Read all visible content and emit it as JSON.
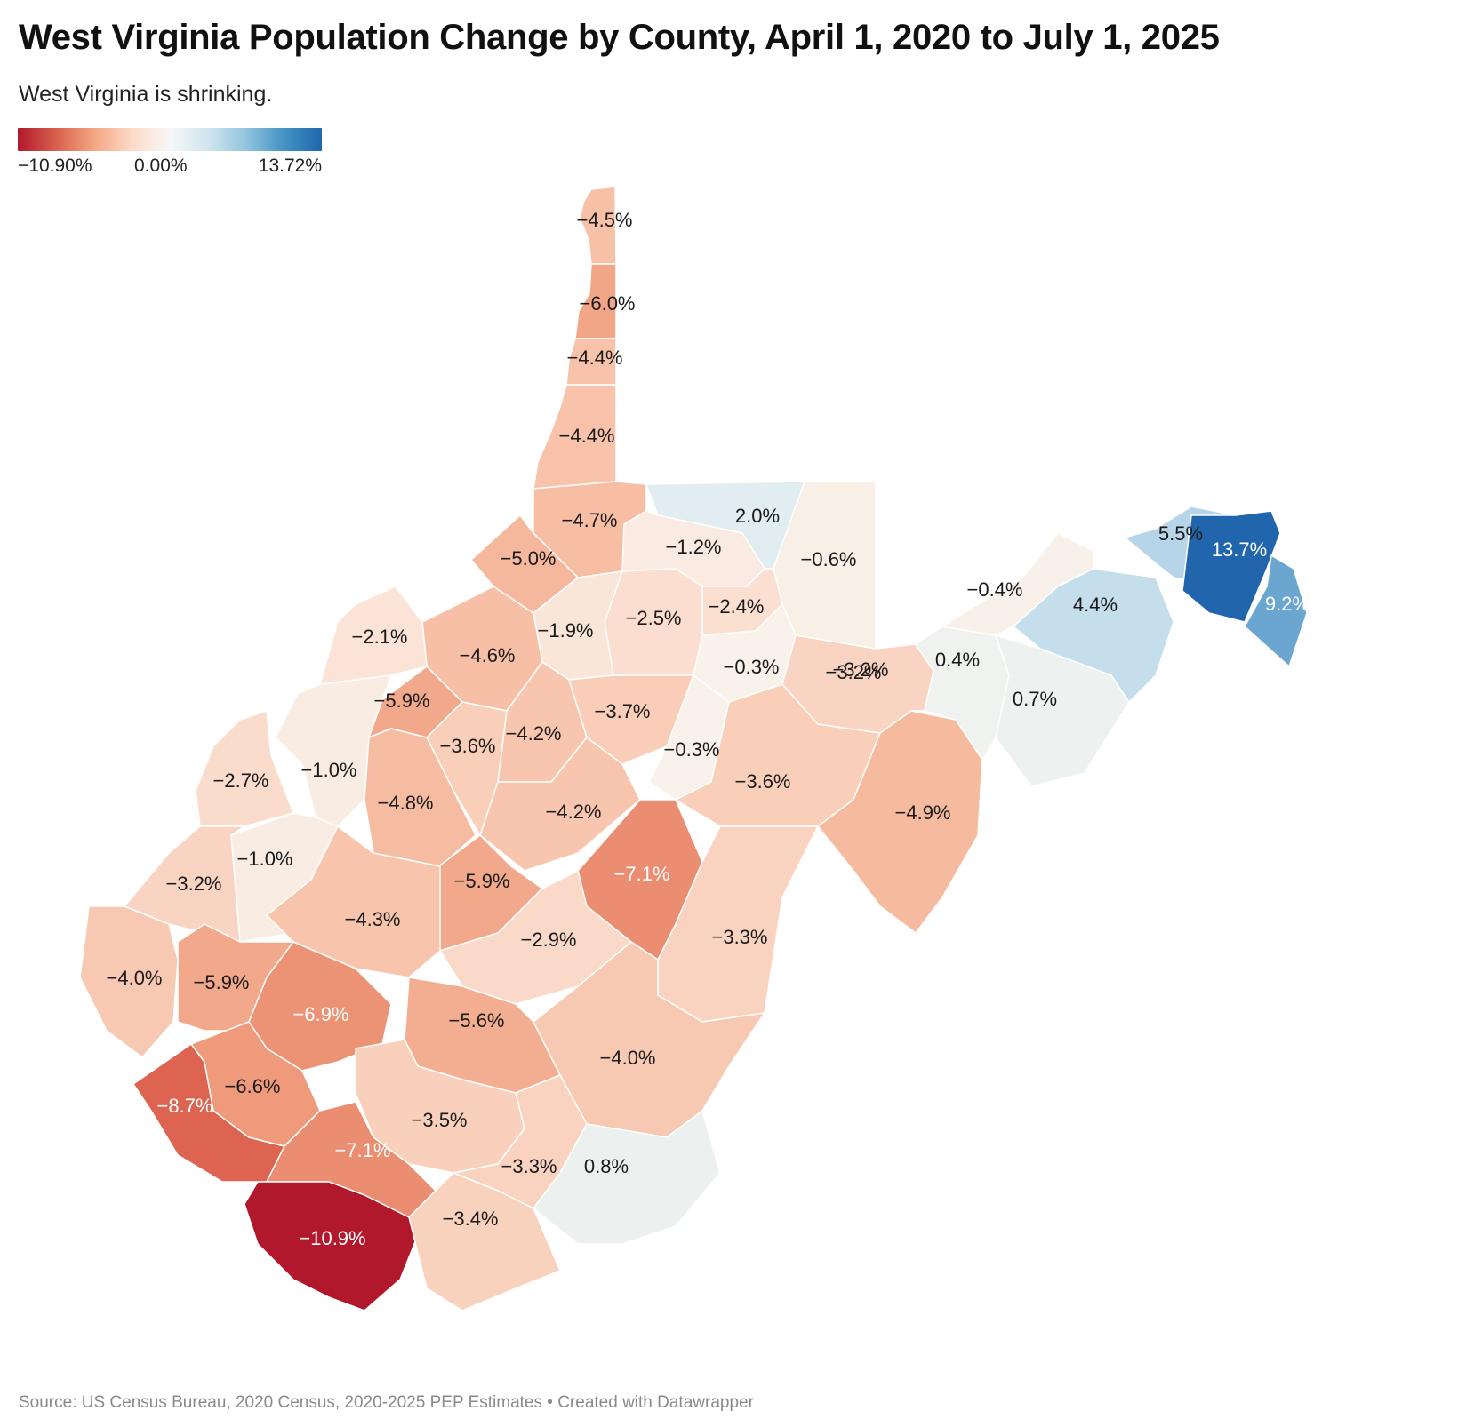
{
  "title": "West Virginia Population Change by County, April 1, 2020 to July 1, 2025",
  "subtitle": "West Virginia is shrinking.",
  "legend": {
    "min_label": "−10.90%",
    "mid_label": "0.00%",
    "max_label": "13.72%",
    "colors": [
      "#b2182b",
      "#d6604d",
      "#f4a582",
      "#fddbc7",
      "#f7f7f7",
      "#d1e5f0",
      "#92c5de",
      "#4393c3",
      "#2166ac"
    ]
  },
  "source": "Source: US Census Bureau, 2020 Census, 2020-2025 PEP Estimates • Created with Datawrapper",
  "chart_data": {
    "type": "choropleth",
    "scale": {
      "min": -10.9,
      "mid": 0,
      "max": 13.72,
      "unit": "%"
    },
    "counties": [
      {
        "label": "−4.5%",
        "value": -4.5
      },
      {
        "label": "−6.0%",
        "value": -6.0
      },
      {
        "label": "−4.4%",
        "value": -4.4
      },
      {
        "label": "−4.4%",
        "value": -4.4
      },
      {
        "label": "−4.7%",
        "value": -4.7
      },
      {
        "label": "2.0%",
        "value": 2.0
      },
      {
        "label": "−0.6%",
        "value": -0.6
      },
      {
        "label": "−1.2%",
        "value": -1.2
      },
      {
        "label": "−5.0%",
        "value": -5.0
      },
      {
        "label": "−2.4%",
        "value": -2.4
      },
      {
        "label": "−2.5%",
        "value": -2.5
      },
      {
        "label": "−1.9%",
        "value": -1.9
      },
      {
        "label": "−4.6%",
        "value": -4.6
      },
      {
        "label": "−2.1%",
        "value": -2.1
      },
      {
        "label": "−5.9%",
        "value": -5.9
      },
      {
        "label": "−0.3%",
        "value": -0.3
      },
      {
        "label": "−3.7%",
        "value": -3.7
      },
      {
        "label": "−3.6%",
        "value": -3.6
      },
      {
        "label": "−4.2%",
        "value": -4.2
      },
      {
        "label": "−0.3%",
        "value": -0.3
      },
      {
        "label": "−3.2%",
        "value": -3.2
      },
      {
        "label": "−1.0%",
        "value": -1.0
      },
      {
        "label": "−2.7%",
        "value": -2.7
      },
      {
        "label": "−4.8%",
        "value": -4.8
      },
      {
        "label": "−4.2%",
        "value": -4.2
      },
      {
        "label": "−3.6%",
        "value": -3.6
      },
      {
        "label": "−1.0%",
        "value": -1.0
      },
      {
        "label": "−3.2%",
        "value": -3.2
      },
      {
        "label": "−5.9%",
        "value": -5.9
      },
      {
        "label": "−7.1%",
        "value": -7.1
      },
      {
        "label": "−4.3%",
        "value": -4.3
      },
      {
        "label": "−2.9%",
        "value": -2.9
      },
      {
        "label": "−4.0%",
        "value": -4.0
      },
      {
        "label": "−5.9%",
        "value": -5.9
      },
      {
        "label": "−3.3%",
        "value": -3.3
      },
      {
        "label": "−6.9%",
        "value": -6.9
      },
      {
        "label": "−5.6%",
        "value": -5.6
      },
      {
        "label": "−4.0%",
        "value": -4.0
      },
      {
        "label": "−8.7%",
        "value": -8.7
      },
      {
        "label": "−6.6%",
        "value": -6.6
      },
      {
        "label": "−3.5%",
        "value": -3.5
      },
      {
        "label": "−7.1%",
        "value": -7.1
      },
      {
        "label": "−3.3%",
        "value": -3.3
      },
      {
        "label": "0.8%",
        "value": 0.8
      },
      {
        "label": "−10.9%",
        "value": -10.9
      },
      {
        "label": "−3.4%",
        "value": -3.4
      },
      {
        "label": "−4.9%",
        "value": -4.9
      },
      {
        "label": "−3.2%",
        "value": -3.2
      },
      {
        "label": "0.4%",
        "value": 0.4
      },
      {
        "label": "0.7%",
        "value": 0.7
      },
      {
        "label": "−0.4%",
        "value": -0.4
      },
      {
        "label": "4.4%",
        "value": 4.4
      },
      {
        "label": "5.5%",
        "value": 5.5
      },
      {
        "label": "13.7%",
        "value": 13.7
      },
      {
        "label": "9.2%",
        "value": 9.2
      }
    ]
  }
}
